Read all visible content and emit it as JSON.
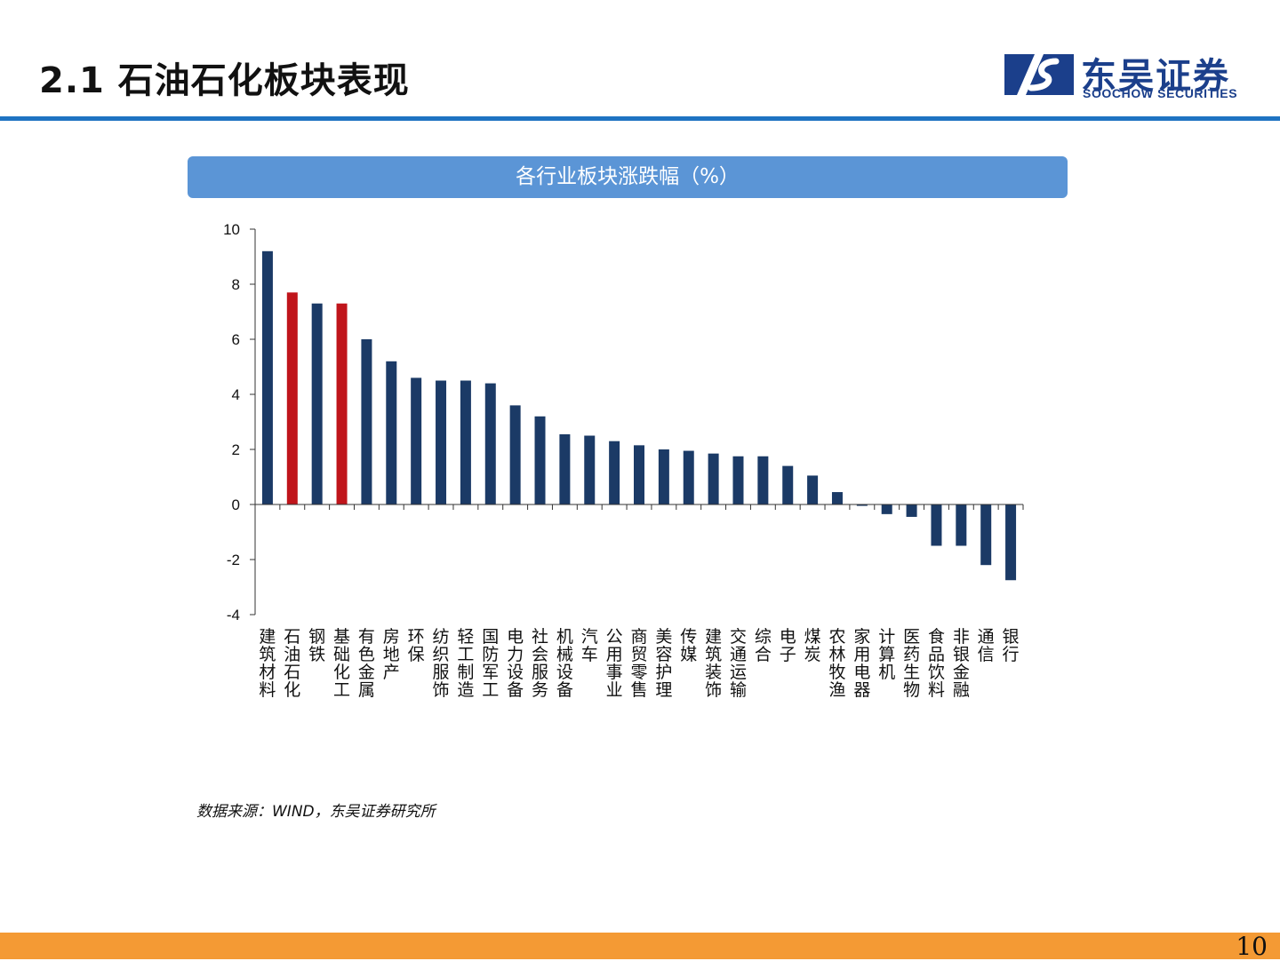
{
  "header": {
    "title": "2.1 石油石化板块表现",
    "logo_cn": "东吴证券",
    "logo_en": "SOOCHOW SECURITIES"
  },
  "chart_banner": "各行业板块涨跌幅（%）",
  "chart_data": {
    "type": "bar",
    "title": "各行业板块涨跌幅（%）",
    "categories": [
      "建筑材料",
      "石油石化",
      "钢铁",
      "基础化工",
      "有色金属",
      "房地产",
      "环保",
      "纺织服饰",
      "轻工制造",
      "国防军工",
      "电力设备",
      "社会服务",
      "机械设备",
      "汽车",
      "公用事业",
      "商贸零售",
      "美容护理",
      "传媒",
      "建筑装饰",
      "交通运输",
      "综合",
      "电子",
      "煤炭",
      "农林牧渔",
      "家用电器",
      "计算机",
      "医药生物",
      "食品饮料",
      "非银金融",
      "通信",
      "银行"
    ],
    "values": [
      9.2,
      7.7,
      7.3,
      7.3,
      6.0,
      5.2,
      4.6,
      4.5,
      4.5,
      4.4,
      3.6,
      3.2,
      2.55,
      2.5,
      2.3,
      2.15,
      2.0,
      1.95,
      1.85,
      1.75,
      1.75,
      1.4,
      1.05,
      0.45,
      -0.05,
      -0.35,
      -0.45,
      -1.5,
      -1.5,
      -2.2,
      -2.75
    ],
    "highlight": [
      "石油石化",
      "基础化工"
    ],
    "ylim": [
      -4,
      10
    ],
    "yticks": [
      10,
      8,
      6,
      4,
      2,
      0,
      -2,
      -4
    ],
    "colors": {
      "default": "#1b3a66",
      "highlight": "#c0151b"
    },
    "grid": false,
    "legend": "none"
  },
  "source": "数据来源：WIND，东吴证券研究所",
  "page_number": "10"
}
